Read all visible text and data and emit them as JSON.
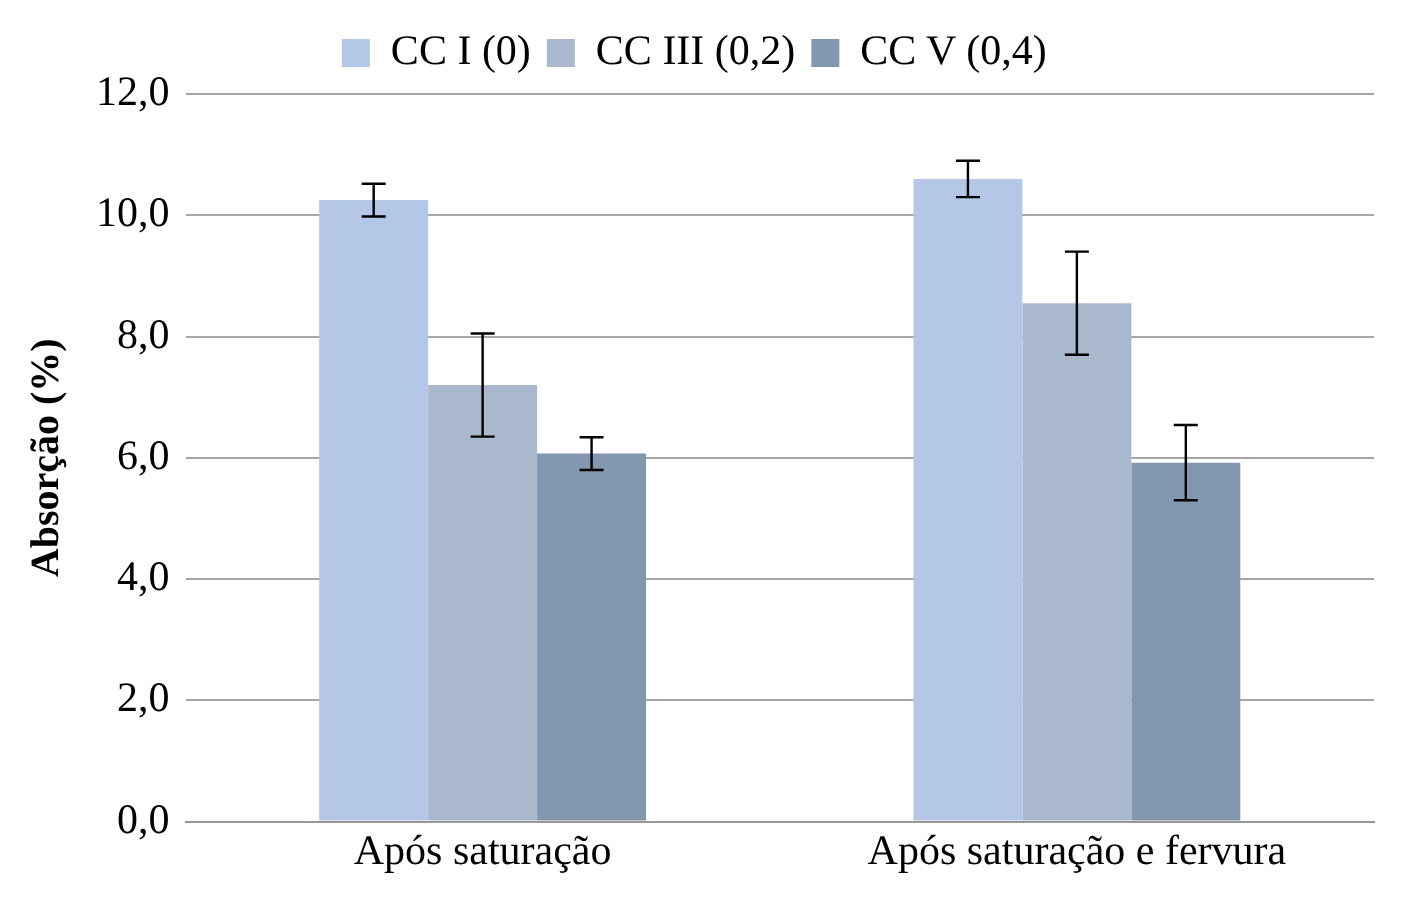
{
  "chart_data": {
    "type": "bar",
    "ylabel": "Absorção (%)",
    "categories": [
      "Após saturação",
      "Após saturação e fervura"
    ],
    "series": [
      {
        "name": "CC I (0)",
        "color": "#b4c7e7",
        "values": [
          10.25,
          10.6
        ],
        "errors": [
          0.27,
          0.3
        ]
      },
      {
        "name": "CC III (0,2)",
        "color": "#a9b8cc",
        "values": [
          7.2,
          8.55
        ],
        "errors": [
          0.85,
          0.85
        ]
      },
      {
        "name": "CC V (0,4)",
        "color": "#8497b0",
        "values": [
          6.07,
          5.92
        ],
        "errors": [
          0.27,
          0.62
        ]
      }
    ],
    "ylim": [
      0,
      12
    ],
    "yticks": [
      {
        "value": 0,
        "label": "0,0"
      },
      {
        "value": 2,
        "label": "2,0"
      },
      {
        "value": 4,
        "label": "4,0"
      },
      {
        "value": 6,
        "label": "6,0"
      },
      {
        "value": 8,
        "label": "8,0"
      },
      {
        "value": 10,
        "label": "10,0"
      },
      {
        "value": 12,
        "label": "12,0"
      }
    ],
    "grid": "y",
    "legend": "top"
  }
}
